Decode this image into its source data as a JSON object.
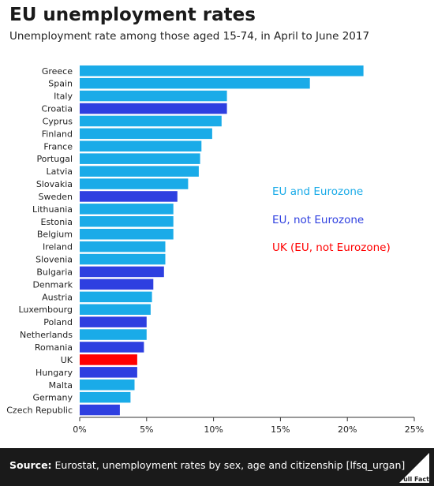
{
  "header": {
    "title": "EU unemployment rates",
    "subtitle": "Unemployment rate among those aged 15-74, in April to June 2017"
  },
  "colors": {
    "eu_eurozone": "#1aabe8",
    "eu_not_eurozone": "#2e3fe0",
    "uk": "#ff0000"
  },
  "chart_data": {
    "type": "bar",
    "orientation": "horizontal",
    "title": "EU unemployment rates",
    "subtitle": "Unemployment rate among those aged 15-74, in April to June 2017",
    "xlim": [
      0,
      25
    ],
    "x_ticks": [
      "0%",
      "5%",
      "10%",
      "15%",
      "20%",
      "25%"
    ],
    "grid": false,
    "legend_placement": "right",
    "legend": [
      {
        "label": "EU and Eurozone",
        "group": "eu_eurozone",
        "color": "#1aabe8"
      },
      {
        "label": "EU, not Eurozone",
        "group": "eu_not_eurozone",
        "color": "#2e3fe0"
      },
      {
        "label": "UK (EU, not Eurozone)",
        "group": "uk",
        "color": "#ff0000"
      }
    ],
    "bars": [
      {
        "category": "Greece",
        "value": 21.2,
        "group": "eu_eurozone"
      },
      {
        "category": "Spain",
        "value": 17.2,
        "group": "eu_eurozone"
      },
      {
        "category": "Italy",
        "value": 11.0,
        "group": "eu_eurozone"
      },
      {
        "category": "Croatia",
        "value": 11.0,
        "group": "eu_not_eurozone"
      },
      {
        "category": "Cyprus",
        "value": 10.6,
        "group": "eu_eurozone"
      },
      {
        "category": "Finland",
        "value": 9.9,
        "group": "eu_eurozone"
      },
      {
        "category": "France",
        "value": 9.1,
        "group": "eu_eurozone"
      },
      {
        "category": "Portugal",
        "value": 9.0,
        "group": "eu_eurozone"
      },
      {
        "category": "Latvia",
        "value": 8.9,
        "group": "eu_eurozone"
      },
      {
        "category": "Slovakia",
        "value": 8.1,
        "group": "eu_eurozone"
      },
      {
        "category": "Sweden",
        "value": 7.3,
        "group": "eu_not_eurozone"
      },
      {
        "category": "Lithuania",
        "value": 7.0,
        "group": "eu_eurozone"
      },
      {
        "category": "Estonia",
        "value": 7.0,
        "group": "eu_eurozone"
      },
      {
        "category": "Belgium",
        "value": 7.0,
        "group": "eu_eurozone"
      },
      {
        "category": "Ireland",
        "value": 6.4,
        "group": "eu_eurozone"
      },
      {
        "category": "Slovenia",
        "value": 6.4,
        "group": "eu_eurozone"
      },
      {
        "category": "Bulgaria",
        "value": 6.3,
        "group": "eu_not_eurozone"
      },
      {
        "category": "Denmark",
        "value": 5.5,
        "group": "eu_not_eurozone"
      },
      {
        "category": "Austria",
        "value": 5.4,
        "group": "eu_eurozone"
      },
      {
        "category": "Luxembourg",
        "value": 5.3,
        "group": "eu_eurozone"
      },
      {
        "category": "Poland",
        "value": 5.0,
        "group": "eu_not_eurozone"
      },
      {
        "category": "Netherlands",
        "value": 5.0,
        "group": "eu_eurozone"
      },
      {
        "category": "Romania",
        "value": 4.8,
        "group": "eu_not_eurozone"
      },
      {
        "category": "UK",
        "value": 4.3,
        "group": "uk"
      },
      {
        "category": "Hungary",
        "value": 4.3,
        "group": "eu_not_eurozone"
      },
      {
        "category": "Malta",
        "value": 4.1,
        "group": "eu_eurozone"
      },
      {
        "category": "Germany",
        "value": 3.8,
        "group": "eu_eurozone"
      },
      {
        "category": "Czech Republic",
        "value": 3.0,
        "group": "eu_not_eurozone"
      }
    ]
  },
  "footer": {
    "source_label": "Source:",
    "source_text": " Eurostat, unemployment rates by sex, age and citizenship [lfsq_urgan]",
    "logo_text": "Full Fact"
  }
}
